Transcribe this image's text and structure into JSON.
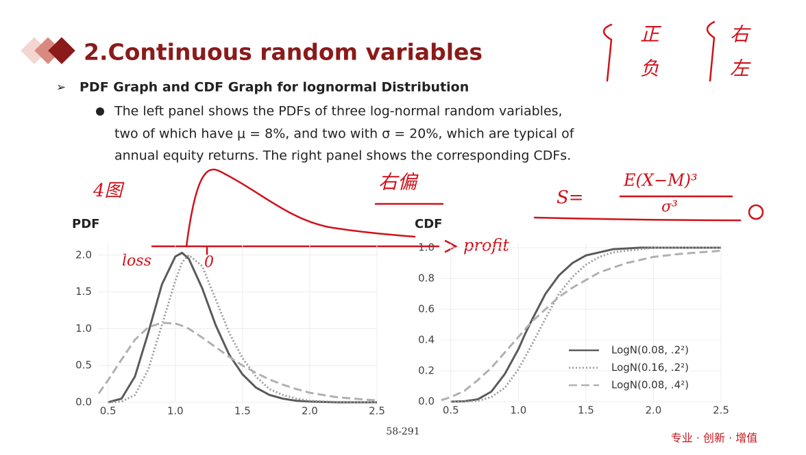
{
  "slide": {
    "title": "2.Continuous random variables",
    "heading": "PDF Graph and CDF Graph for lognormal Distribution",
    "bullet_lines": [
      "The left panel shows the PDFs of three log-normal random variables,",
      "two of which have μ = 8%, and two with σ = 20%, which are typical of",
      "annual equity returns. The right panel shows the corresponding CDFs."
    ],
    "page_number": "58-291",
    "footer": "专业 · 创新 · 增值",
    "annotations": [
      "正",
      "负",
      "右",
      "左",
      "4图",
      "右偏",
      "S=",
      "E(X−M)³",
      "σ³",
      "loss",
      "0",
      "profit"
    ]
  },
  "chart_data": [
    {
      "type": "line",
      "title": "PDF",
      "xlim": [
        0.42,
        2.5
      ],
      "ylim": [
        0,
        2.1
      ],
      "xticks": [
        0.5,
        {
          "value": 1,
          "label": "1.0"
        },
        1.5,
        {
          "value": 2,
          "label": "2.0"
        },
        2.5
      ],
      "yticks": [
        {
          "value": 0,
          "label": "0.0"
        },
        0.5,
        {
          "value": 1,
          "label": "1.0"
        },
        1.5,
        {
          "value": 2,
          "label": "2.0"
        }
      ],
      "grid": true,
      "series": [
        {
          "name": "LogN(0.08, .2²)",
          "color": "#5a5a5a",
          "style": "solid",
          "x": [
            0.5,
            0.6,
            0.7,
            0.8,
            0.9,
            1.0,
            1.05,
            1.1,
            1.2,
            1.3,
            1.4,
            1.5,
            1.6,
            1.7,
            1.8,
            1.9,
            2.0,
            2.2,
            2.5
          ],
          "values": [
            0,
            0.05,
            0.35,
            0.95,
            1.6,
            1.98,
            2.03,
            1.95,
            1.55,
            1.05,
            0.65,
            0.38,
            0.2,
            0.1,
            0.05,
            0.02,
            0.01,
            0,
            0
          ]
        },
        {
          "name": "LogN(0.16, .2²)",
          "color": "#9a9a9a",
          "style": "dotted",
          "x": [
            0.5,
            0.6,
            0.7,
            0.8,
            0.9,
            1.0,
            1.05,
            1.1,
            1.2,
            1.3,
            1.4,
            1.5,
            1.6,
            1.7,
            1.8,
            1.9,
            2.0,
            2.2,
            2.5
          ],
          "values": [
            0,
            0.01,
            0.1,
            0.45,
            1.05,
            1.65,
            1.9,
            2.0,
            1.85,
            1.4,
            0.95,
            0.6,
            0.35,
            0.18,
            0.1,
            0.05,
            0.02,
            0.005,
            0
          ]
        },
        {
          "name": "LogN(0.08, .4²)",
          "color": "#b0b0b0",
          "style": "dashed",
          "x": [
            0.43,
            0.5,
            0.6,
            0.7,
            0.8,
            0.9,
            1.0,
            1.05,
            1.1,
            1.2,
            1.3,
            1.4,
            1.5,
            1.6,
            1.7,
            1.8,
            1.9,
            2.0,
            2.2,
            2.5
          ],
          "values": [
            0.12,
            0.3,
            0.58,
            0.85,
            1.02,
            1.08,
            1.07,
            1.04,
            1.0,
            0.88,
            0.75,
            0.62,
            0.5,
            0.4,
            0.31,
            0.24,
            0.18,
            0.13,
            0.07,
            0.025
          ]
        }
      ]
    },
    {
      "type": "line",
      "title": "CDF",
      "xlim": [
        0.42,
        2.5
      ],
      "ylim": [
        0,
        1
      ],
      "xticks": [
        0.5,
        {
          "value": 1,
          "label": "1.0"
        },
        1.5,
        {
          "value": 2,
          "label": "2.0"
        },
        2.5
      ],
      "yticks": [
        {
          "value": 0,
          "label": "0.0"
        },
        0.2,
        0.4,
        0.6,
        0.8,
        {
          "value": 1,
          "label": "1.0"
        }
      ],
      "grid": true,
      "legend": "bottom-right",
      "series": [
        {
          "name": "LogN(0.08, .2²)",
          "color": "#5a5a5a",
          "style": "solid",
          "x": [
            0.5,
            0.6,
            0.7,
            0.8,
            0.9,
            1.0,
            1.05,
            1.1,
            1.2,
            1.3,
            1.4,
            1.5,
            1.6,
            1.7,
            1.8,
            1.9,
            2.0,
            2.2,
            2.5
          ],
          "values": [
            0,
            0.002,
            0.015,
            0.065,
            0.18,
            0.34,
            0.44,
            0.53,
            0.7,
            0.82,
            0.9,
            0.95,
            0.97,
            0.99,
            0.995,
            1,
            1,
            1,
            1
          ]
        },
        {
          "name": "LogN(0.16, .2²)",
          "color": "#9a9a9a",
          "style": "dotted",
          "x": [
            0.5,
            0.6,
            0.7,
            0.8,
            0.9,
            1.0,
            1.05,
            1.1,
            1.2,
            1.3,
            1.4,
            1.5,
            1.6,
            1.7,
            1.8,
            1.9,
            2.0,
            2.2,
            2.5
          ],
          "values": [
            0,
            0,
            0.005,
            0.03,
            0.09,
            0.21,
            0.29,
            0.37,
            0.54,
            0.7,
            0.81,
            0.89,
            0.94,
            0.97,
            0.98,
            0.99,
            1,
            1,
            1
          ]
        },
        {
          "name": "LogN(0.08, .4²)",
          "color": "#b0b0b0",
          "style": "dashed",
          "x": [
            0.43,
            0.5,
            0.6,
            0.7,
            0.8,
            0.9,
            1.0,
            1.05,
            1.1,
            1.2,
            1.3,
            1.4,
            1.5,
            1.6,
            1.7,
            1.8,
            1.9,
            2.0,
            2.2,
            2.5
          ],
          "values": [
            0.01,
            0.03,
            0.07,
            0.14,
            0.22,
            0.32,
            0.42,
            0.47,
            0.52,
            0.6,
            0.68,
            0.74,
            0.79,
            0.84,
            0.87,
            0.9,
            0.92,
            0.94,
            0.96,
            0.98
          ]
        }
      ]
    }
  ]
}
